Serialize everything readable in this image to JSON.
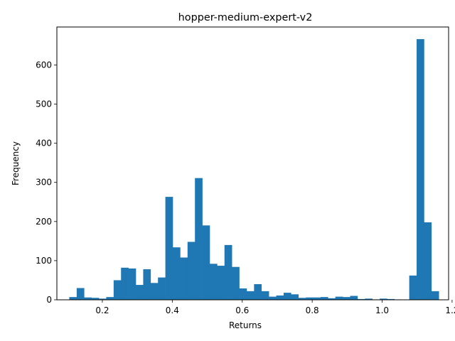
{
  "chart_data": {
    "type": "bar",
    "title": "hopper-medium-expert-v2",
    "xlabel": "Returns",
    "ylabel": "Frequency",
    "xlim": [
      0.07,
      1.19
    ],
    "ylim": [
      0,
      697
    ],
    "xticks": [
      0.2,
      0.4,
      0.6,
      0.8,
      1.0,
      1.2
    ],
    "xtick_labels": [
      "0.2",
      "0.4",
      "0.6",
      "0.8",
      "1.0",
      "1.2"
    ],
    "yticks": [
      0,
      100,
      200,
      300,
      400,
      500,
      600
    ],
    "ytick_labels": [
      "0",
      "100",
      "200",
      "300",
      "400",
      "500",
      "600"
    ],
    "bar_color": "#1f77b4",
    "grid": false,
    "bin_start": 0.1055,
    "bin_width": 0.02113,
    "values": [
      7,
      30,
      6,
      5,
      3,
      7,
      50,
      82,
      80,
      38,
      78,
      43,
      57,
      263,
      134,
      108,
      148,
      311,
      190,
      92,
      87,
      140,
      84,
      29,
      22,
      40,
      22,
      8,
      11,
      18,
      14,
      5,
      6,
      6,
      7,
      4,
      8,
      7,
      10,
      2,
      3,
      1,
      3,
      2,
      1,
      0,
      62,
      666,
      198,
      22
    ]
  }
}
